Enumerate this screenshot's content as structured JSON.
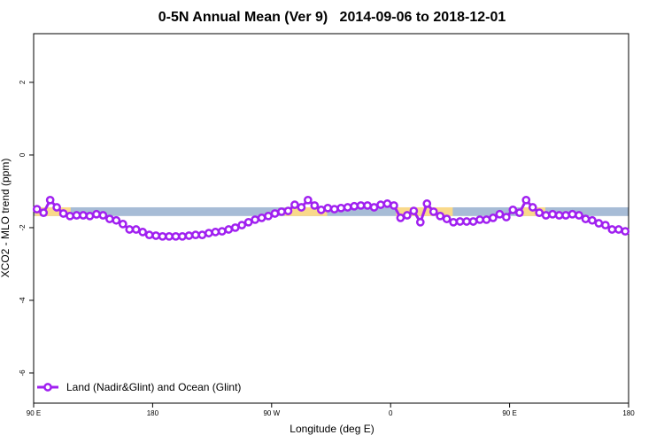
{
  "chart_data": {
    "type": "line",
    "title": "0-5N Annual Mean (Ver 9)   2014-09-06 to 2018-12-01",
    "x_label": "Longitude (deg E)",
    "y_label": "XCO2 - MLO trend (ppm)",
    "xlim": [
      90,
      540
    ],
    "ylim": [
      -6.83,
      3.34
    ],
    "xticks": [
      {
        "value": 90,
        "label": "90 E"
      },
      180,
      {
        "value": 270,
        "label": "90 W"
      },
      {
        "value": 360,
        "label": "0"
      },
      {
        "value": 450,
        "label": "90 E"
      },
      {
        "value": 540,
        "label": "180"
      }
    ],
    "yticks": [
      -6,
      -4,
      -2,
      0,
      2
    ],
    "legend": "bottom-left",
    "band": {
      "range": [
        -1.68,
        -1.44
      ],
      "color": "#a7bcd6",
      "highlights": [
        {
          "from": 91,
          "to": 118,
          "color": "#f9d98a"
        },
        {
          "from": 280,
          "to": 312,
          "color": "#f9d98a"
        },
        {
          "from": 364,
          "to": 407,
          "color": "#f9d98a"
        },
        {
          "from": 460,
          "to": 477,
          "color": "#f9d98a"
        }
      ]
    },
    "x": [
      92.5,
      97.5,
      102.5,
      107.5,
      112.5,
      117.5,
      122.5,
      127.5,
      132.5,
      137.5,
      142.5,
      147.5,
      152.5,
      157.5,
      162.5,
      167.5,
      172.5,
      177.5,
      182.5,
      187.5,
      192.5,
      197.5,
      202.5,
      207.5,
      212.5,
      217.5,
      222.5,
      227.5,
      232.5,
      237.5,
      242.5,
      247.5,
      252.5,
      257.5,
      262.5,
      267.5,
      272.5,
      277.5,
      282.5,
      287.5,
      292.5,
      297.5,
      302.5,
      307.5,
      312.5,
      317.5,
      322.5,
      327.5,
      332.5,
      337.5,
      342.5,
      347.5,
      352.5,
      357.5,
      362.5,
      367.5,
      372.5,
      377.5,
      382.5,
      387.5,
      392.5,
      397.5,
      402.5,
      407.5,
      412.5,
      417.5,
      422.5,
      427.5,
      432.5,
      437.5,
      442.5,
      447.5,
      452.5,
      457.5,
      462.5,
      467.5,
      472.5,
      477.5,
      482.5,
      487.5,
      492.5,
      497.5,
      502.5,
      507.5,
      512.5,
      517.5,
      522.5,
      527.5,
      532.5,
      537.5
    ],
    "series": [
      {
        "name": "Land (Nadir&Glint) and Ocean (Glint)",
        "color": "#a020f0",
        "values": [
          -1.49,
          -1.59,
          -1.24,
          -1.44,
          -1.61,
          -1.68,
          -1.66,
          -1.66,
          -1.68,
          -1.63,
          -1.66,
          -1.76,
          -1.8,
          -1.9,
          -2.05,
          -2.05,
          -2.12,
          -2.2,
          -2.22,
          -2.24,
          -2.24,
          -2.24,
          -2.24,
          -2.22,
          -2.2,
          -2.2,
          -2.15,
          -2.12,
          -2.1,
          -2.05,
          -2.0,
          -1.93,
          -1.85,
          -1.78,
          -1.73,
          -1.68,
          -1.61,
          -1.56,
          -1.54,
          -1.37,
          -1.44,
          -1.24,
          -1.39,
          -1.51,
          -1.46,
          -1.49,
          -1.46,
          -1.44,
          -1.41,
          -1.39,
          -1.39,
          -1.44,
          -1.37,
          -1.34,
          -1.39,
          -1.73,
          -1.66,
          -1.54,
          -1.85,
          -1.34,
          -1.56,
          -1.68,
          -1.76,
          -1.85,
          -1.83,
          -1.83,
          -1.83,
          -1.78,
          -1.78,
          -1.73,
          -1.63,
          -1.71,
          -1.51,
          -1.59,
          -1.24,
          -1.44,
          -1.59,
          -1.66,
          -1.63,
          -1.66,
          -1.66,
          -1.63,
          -1.66,
          -1.76,
          -1.8,
          -1.88,
          -1.93,
          -2.05,
          -2.05,
          -2.1
        ]
      }
    ]
  }
}
